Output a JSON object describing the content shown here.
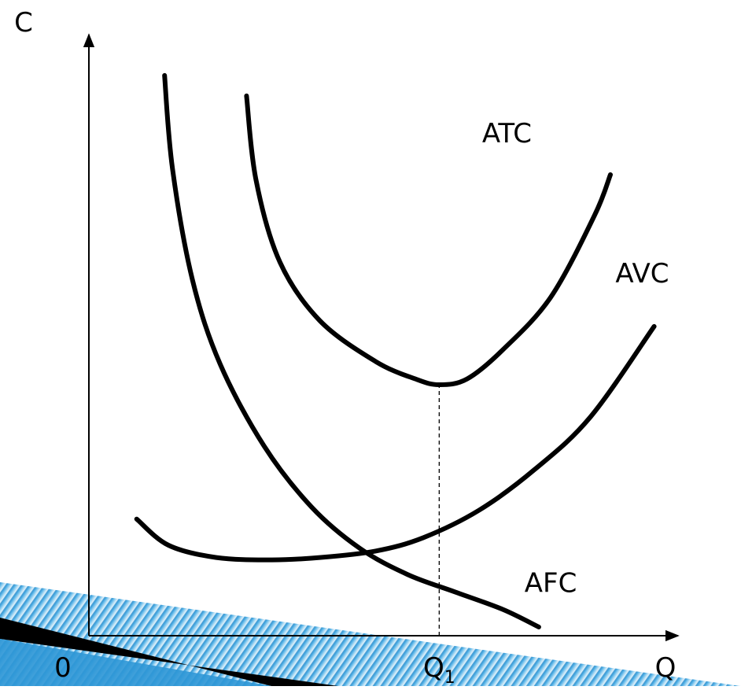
{
  "chart_data": {
    "type": "line",
    "title": "",
    "xlabel": "Q",
    "ylabel": "C",
    "origin_label": "0",
    "x_tick": {
      "main": "Q",
      "sub": "1",
      "x": 4.4
    },
    "xlim": [
      0,
      7.4
    ],
    "ylim": [
      0,
      10.3
    ],
    "grid": false,
    "legend": "none",
    "series": [
      {
        "name": "ATC",
        "x": [
          1.98,
          2.1,
          2.4,
          2.9,
          3.6,
          4.1,
          4.4,
          4.75,
          5.2,
          5.8,
          6.35,
          6.55
        ],
        "y": [
          9.25,
          7.8,
          6.4,
          5.4,
          4.7,
          4.4,
          4.3,
          4.4,
          4.9,
          5.8,
          7.2,
          7.9
        ]
      },
      {
        "name": "AVC",
        "x": [
          0.6,
          1.0,
          1.6,
          2.3,
          2.9,
          3.6,
          4.2,
          4.9,
          5.6,
          6.3,
          7.1
        ],
        "y": [
          2.0,
          1.55,
          1.34,
          1.3,
          1.34,
          1.45,
          1.68,
          2.15,
          2.85,
          3.75,
          5.3
        ]
      },
      {
        "name": "AFC",
        "x": [
          0.95,
          1.05,
          1.3,
          1.65,
          2.2,
          2.8,
          3.4,
          4.0,
          4.6,
          5.2,
          5.65
        ],
        "y": [
          9.6,
          8.0,
          6.1,
          4.65,
          3.25,
          2.2,
          1.5,
          1.05,
          0.75,
          0.45,
          0.15
        ]
      }
    ],
    "curve_labels": [
      {
        "series": "ATC",
        "text": "ATC",
        "x": 5.25,
        "y": 8.45
      },
      {
        "series": "AVC",
        "text": "AVC",
        "x": 6.95,
        "y": 6.05
      },
      {
        "series": "AFC",
        "text": "AFC",
        "x": 5.8,
        "y": 0.75
      }
    ],
    "guide": {
      "x": 4.4,
      "from_series": "ATC"
    }
  },
  "decoration": {
    "accent_colors": [
      "#1f86c8",
      "#5bb5e8",
      "#bfe3f6",
      "#e4f2fb"
    ]
  }
}
